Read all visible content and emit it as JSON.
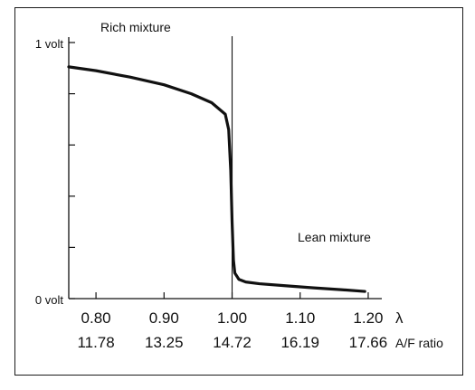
{
  "chart_data": {
    "type": "line",
    "title": "",
    "xlabel": "",
    "ylabel": "",
    "xlim": [
      0.76,
      1.22
    ],
    "ylim": [
      0,
      1
    ],
    "grid": false,
    "y_tick_labels": [
      {
        "value": 1.0,
        "label": "1 volt"
      },
      {
        "value": 0.0,
        "label": "0 volt"
      }
    ],
    "y_minor_ticks": [
      0.2,
      0.4,
      0.6,
      0.8
    ],
    "x_ticks": [
      0.8,
      0.9,
      1.0,
      1.1,
      1.2
    ],
    "x_tick_labels": [
      "0.80",
      "0.90",
      "1.00",
      "1.10",
      "1.20"
    ],
    "x_axis_symbol": "λ",
    "secondary_x_tick_labels": [
      "11.78",
      "13.25",
      "14.72",
      "16.19",
      "17.66"
    ],
    "secondary_x_axis_label": "A/F ratio",
    "reference_line_x": 1.0,
    "annotations": {
      "rich": "Rich mixture",
      "lean": "Lean mixture"
    },
    "series": [
      {
        "x": [
          0.76,
          0.8,
          0.85,
          0.9,
          0.94,
          0.97,
          0.99,
          0.995,
          0.998,
          1.0,
          1.002,
          1.004,
          1.01,
          1.02,
          1.04,
          1.08,
          1.12,
          1.16,
          1.195
        ],
        "y": [
          0.905,
          0.89,
          0.865,
          0.835,
          0.8,
          0.765,
          0.72,
          0.66,
          0.5,
          0.3,
          0.15,
          0.1,
          0.075,
          0.065,
          0.058,
          0.05,
          0.042,
          0.035,
          0.028
        ]
      }
    ]
  }
}
